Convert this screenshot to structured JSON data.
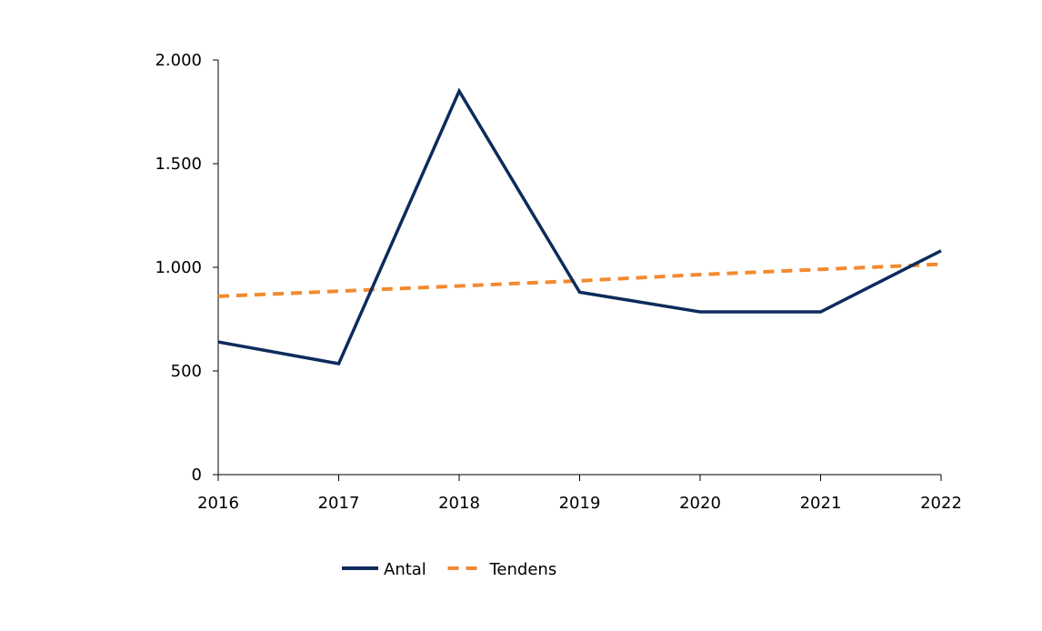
{
  "chart_data": {
    "type": "line",
    "x": [
      "2016",
      "2017",
      "2018",
      "2019",
      "2020",
      "2021",
      "2022"
    ],
    "ylim": [
      0,
      2000
    ],
    "y_ticks": [
      0,
      500,
      1000,
      1500,
      2000
    ],
    "y_tick_labels": [
      "0",
      "500",
      "1.000",
      "1.500",
      "2.000"
    ],
    "grid": false,
    "legend_position": "bottom",
    "series": [
      {
        "name": "Antal",
        "values": [
          640,
          535,
          1850,
          880,
          785,
          785,
          1080
        ],
        "color": "#0d2b5c",
        "style": "solid"
      },
      {
        "name": "Tendens",
        "values": [
          860,
          885,
          910,
          935,
          965,
          990,
          1015
        ],
        "color": "#f28a30",
        "style": "dashed"
      }
    ]
  }
}
